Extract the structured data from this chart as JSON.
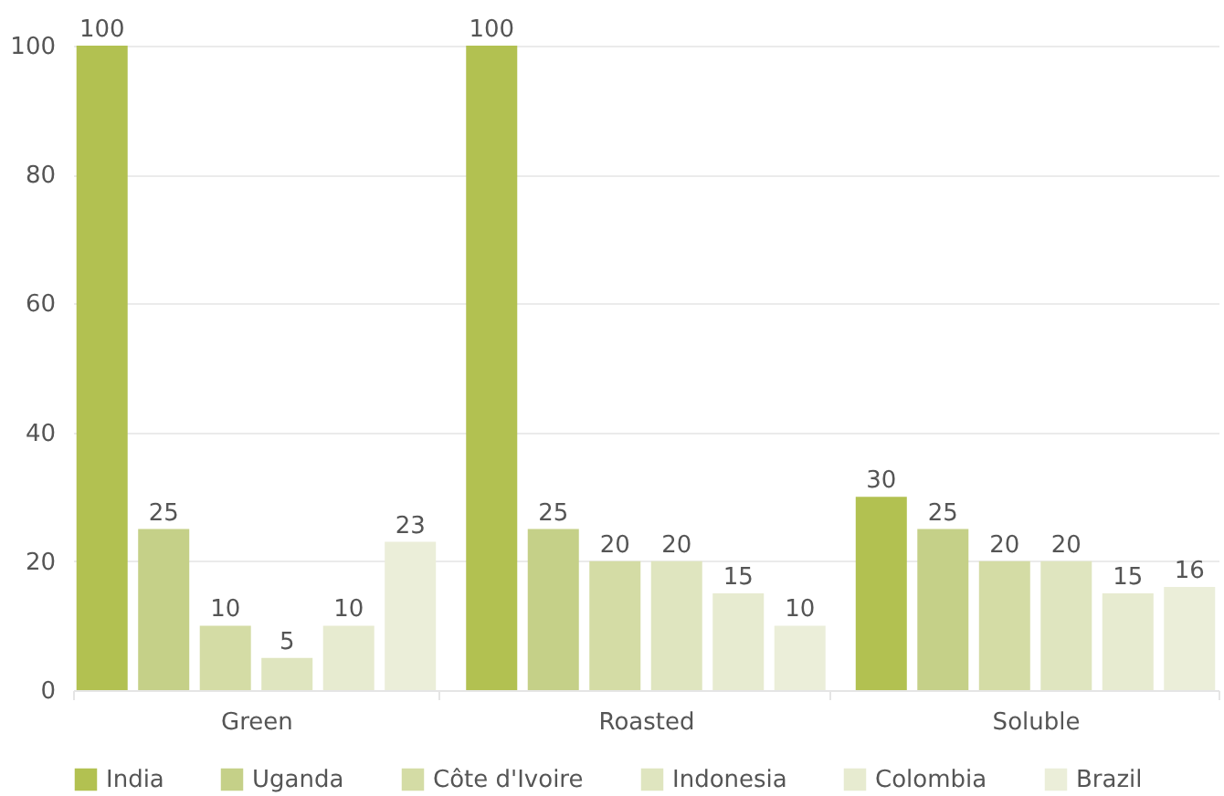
{
  "chart_data": {
    "type": "bar",
    "categories": [
      "Green",
      "Roasted",
      "Soluble"
    ],
    "series": [
      {
        "name": "India",
        "color": "#b2c151",
        "values": [
          100,
          100,
          30
        ]
      },
      {
        "name": "Uganda",
        "color": "#c5d088",
        "values": [
          25,
          25,
          25
        ]
      },
      {
        "name": "Côte d'Ivoire",
        "color": "#d4dca5",
        "values": [
          10,
          20,
          20
        ]
      },
      {
        "name": "Indonesia",
        "color": "#dfe5bf",
        "values": [
          5,
          20,
          20
        ]
      },
      {
        "name": "Colombia",
        "color": "#e7ebd0",
        "values": [
          10,
          15,
          15
        ]
      },
      {
        "name": "Brazil",
        "color": "#ebeed9",
        "values": [
          23,
          10,
          16
        ]
      }
    ],
    "ylim": [
      0,
      100
    ],
    "yticks": [
      0,
      20,
      40,
      60,
      80,
      100
    ],
    "grid": "y",
    "legend": "bottom",
    "data_labels": true
  }
}
